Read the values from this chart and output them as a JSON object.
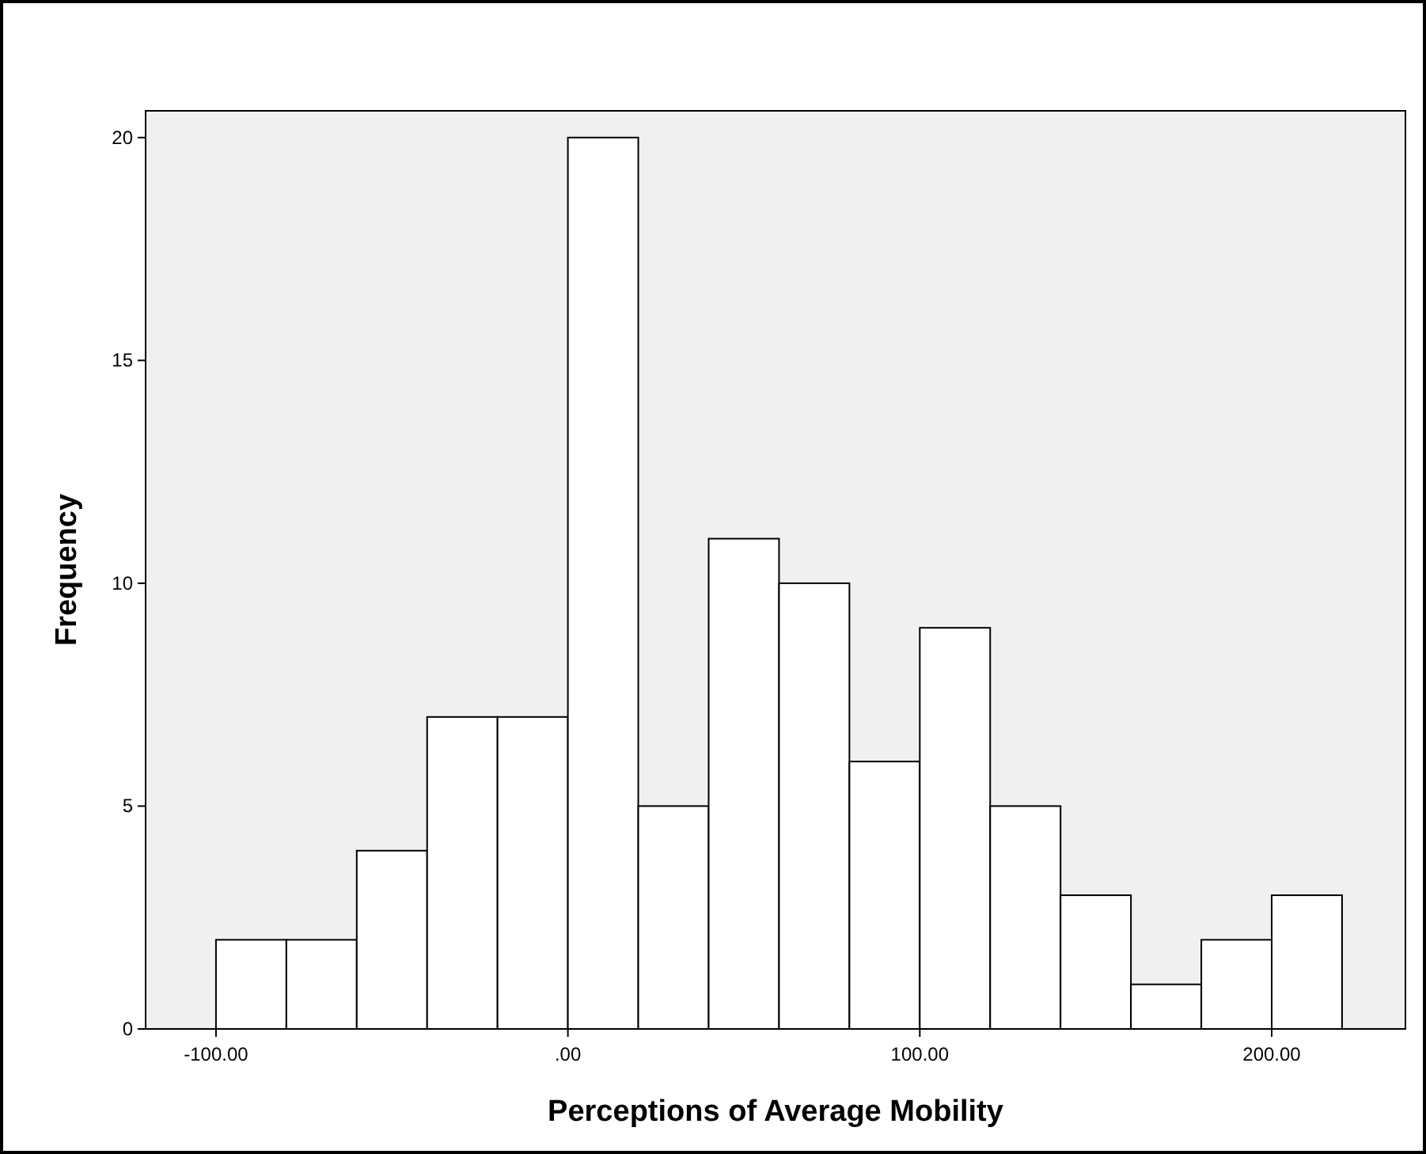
{
  "chart_data": {
    "type": "histogram",
    "xlabel": "Perceptions of Average Mobility",
    "ylabel": "Frequency",
    "bins": [
      -100,
      -80,
      -60,
      -40,
      -20,
      0,
      20,
      40,
      60,
      80,
      100,
      120,
      140,
      160,
      180,
      200,
      220
    ],
    "values": [
      2,
      2,
      4,
      7,
      7,
      20,
      5,
      11,
      10,
      6,
      9,
      5,
      3,
      1,
      2,
      3
    ],
    "color": "#ffffff",
    "xlim": [
      -120,
      238
    ],
    "xticks": [
      {
        "value": -100,
        "label": "-100.00"
      },
      {
        "value": 0,
        "label": ".00"
      },
      {
        "value": 100,
        "label": "100.00"
      },
      {
        "value": 200,
        "label": "200.00"
      }
    ],
    "ylim": [
      0,
      20.6
    ],
    "yticks": [
      0,
      5,
      10,
      15,
      20
    ],
    "grid": false
  }
}
